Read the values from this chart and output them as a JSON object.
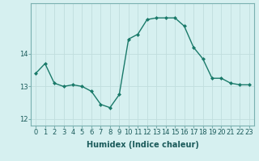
{
  "x": [
    0,
    1,
    2,
    3,
    4,
    5,
    6,
    7,
    8,
    9,
    10,
    11,
    12,
    13,
    14,
    15,
    16,
    17,
    18,
    19,
    20,
    21,
    22,
    23
  ],
  "y": [
    13.4,
    13.7,
    13.1,
    13.0,
    13.05,
    13.0,
    12.85,
    12.45,
    12.35,
    12.75,
    14.45,
    14.6,
    15.05,
    15.1,
    15.1,
    15.1,
    14.85,
    14.2,
    13.85,
    13.25,
    13.25,
    13.1,
    13.05,
    13.05
  ],
  "line_color": "#1a7a6a",
  "marker": "D",
  "marker_size": 2,
  "bg_color": "#d6f0f0",
  "grid_color": "#c0dede",
  "xlabel": "Humidex (Indice chaleur)",
  "ylim": [
    11.8,
    15.55
  ],
  "xlim": [
    -0.5,
    23.5
  ],
  "yticks": [
    12,
    13,
    14
  ],
  "xticks": [
    0,
    1,
    2,
    3,
    4,
    5,
    6,
    7,
    8,
    9,
    10,
    11,
    12,
    13,
    14,
    15,
    16,
    17,
    18,
    19,
    20,
    21,
    22,
    23
  ],
  "xlabel_fontsize": 7,
  "tick_fontsize": 6,
  "linewidth": 1.0
}
